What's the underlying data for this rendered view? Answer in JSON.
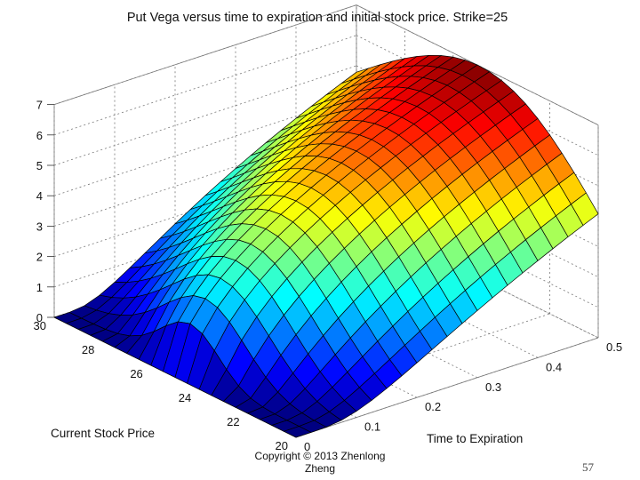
{
  "slide": {
    "footer_line1": "Copyright © 2013 Zhenlong",
    "footer_line2": "Zheng",
    "page_number": "57"
  },
  "chart_data": {
    "type": "surface",
    "title": "Put Vega versus time to expiration and initial stock price. Strike=25",
    "xlabel": "Time to Expiration",
    "ylabel": "Current Stock Price",
    "zlabel": "",
    "xlim": [
      0,
      0.5
    ],
    "ylim": [
      20,
      30
    ],
    "zlim": [
      0,
      7
    ],
    "x_ticks": [
      "0",
      "0.1",
      "0.2",
      "0.3",
      "0.4",
      "0.5"
    ],
    "y_ticks": [
      "20",
      "22",
      "24",
      "26",
      "28",
      "30"
    ],
    "z_ticks": [
      "0",
      "1",
      "2",
      "3",
      "4",
      "5",
      "6",
      "7"
    ],
    "strike": 25,
    "grid": true,
    "colormap": "jet",
    "x_values": [
      0,
      0.025,
      0.05,
      0.075,
      0.1,
      0.125,
      0.15,
      0.175,
      0.2,
      0.225,
      0.25,
      0.275,
      0.3,
      0.325,
      0.35,
      0.375,
      0.4,
      0.425,
      0.45,
      0.475,
      0.5
    ],
    "y_values": [
      20,
      20.5,
      21,
      21.5,
      22,
      22.5,
      23,
      23.5,
      24,
      24.5,
      25,
      25.5,
      26,
      26.5,
      27,
      27.5,
      28,
      28.5,
      29,
      29.5,
      30
    ],
    "z_max": 7.0
  }
}
